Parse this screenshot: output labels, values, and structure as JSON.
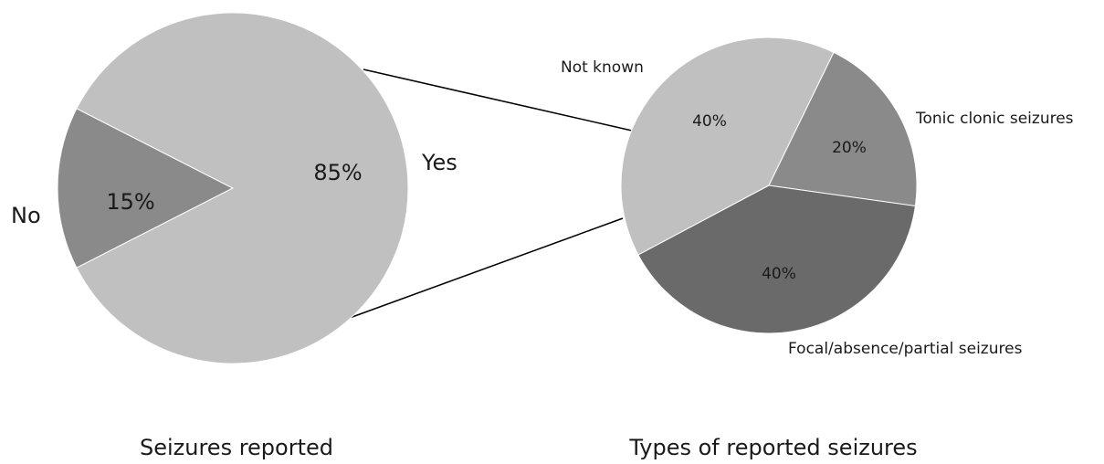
{
  "chart_data": [
    {
      "type": "pie",
      "title": "Seizures reported",
      "slices": [
        {
          "label": "No",
          "value": 15,
          "pct_label": "15%",
          "color": "#8a8a8a"
        },
        {
          "label": "Yes",
          "value": 85,
          "pct_label": "85%",
          "color": "#c0c0c0"
        }
      ]
    },
    {
      "type": "pie",
      "title": "Types of reported seizures",
      "slices": [
        {
          "label": "Not known",
          "value": 40,
          "pct_label": "40%",
          "color": "#c0c0c0"
        },
        {
          "label": "Tonic clonic seizures",
          "value": 20,
          "pct_label": "20%",
          "color": "#8a8a8a"
        },
        {
          "label": "Focal/absence/partial seizures",
          "value": 40,
          "pct_label": "40%",
          "color": "#6a6a6a"
        }
      ]
    }
  ]
}
